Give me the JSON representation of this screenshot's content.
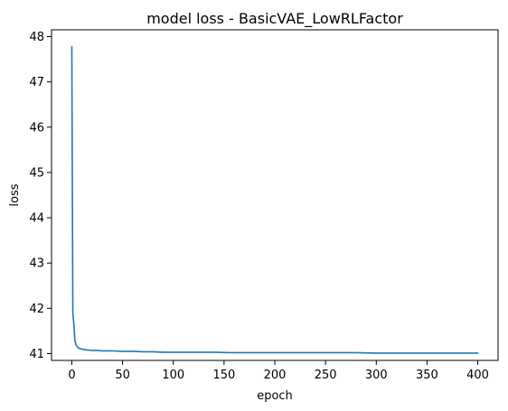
{
  "chart_data": {
    "type": "line",
    "title": "model loss - BasicVAE_LowRLFactor",
    "xlabel": "epoch",
    "ylabel": "loss",
    "xlim": [
      -20,
      420
    ],
    "ylim": [
      40.85,
      48.15
    ],
    "xticks": [
      0,
      50,
      100,
      150,
      200,
      250,
      300,
      350,
      400
    ],
    "xtick_labels": [
      "0",
      "50",
      "100",
      "150",
      "200",
      "250",
      "300",
      "350",
      "400"
    ],
    "yticks": [
      41,
      42,
      43,
      44,
      45,
      46,
      47,
      48
    ],
    "ytick_labels": [
      "41",
      "42",
      "43",
      "44",
      "45",
      "46",
      "47",
      "48"
    ],
    "grid": false,
    "legend": "none",
    "series": [
      {
        "color": "#1f77b4",
        "x": [
          0,
          1,
          2,
          3,
          4,
          5,
          6,
          7,
          8,
          10,
          12,
          15,
          20,
          25,
          30,
          40,
          50,
          60,
          70,
          80,
          90,
          100,
          120,
          140,
          160,
          180,
          200,
          220,
          240,
          260,
          280,
          300,
          320,
          340,
          360,
          380,
          400
        ],
        "y": [
          47.78,
          41.9,
          41.65,
          41.3,
          41.2,
          41.16,
          41.14,
          41.12,
          41.11,
          41.1,
          41.09,
          41.08,
          41.07,
          41.07,
          41.06,
          41.06,
          41.05,
          41.05,
          41.04,
          41.04,
          41.03,
          41.03,
          41.03,
          41.03,
          41.02,
          41.02,
          41.02,
          41.02,
          41.02,
          41.02,
          41.02,
          41.01,
          41.01,
          41.01,
          41.01,
          41.01,
          41.01
        ]
      }
    ]
  }
}
